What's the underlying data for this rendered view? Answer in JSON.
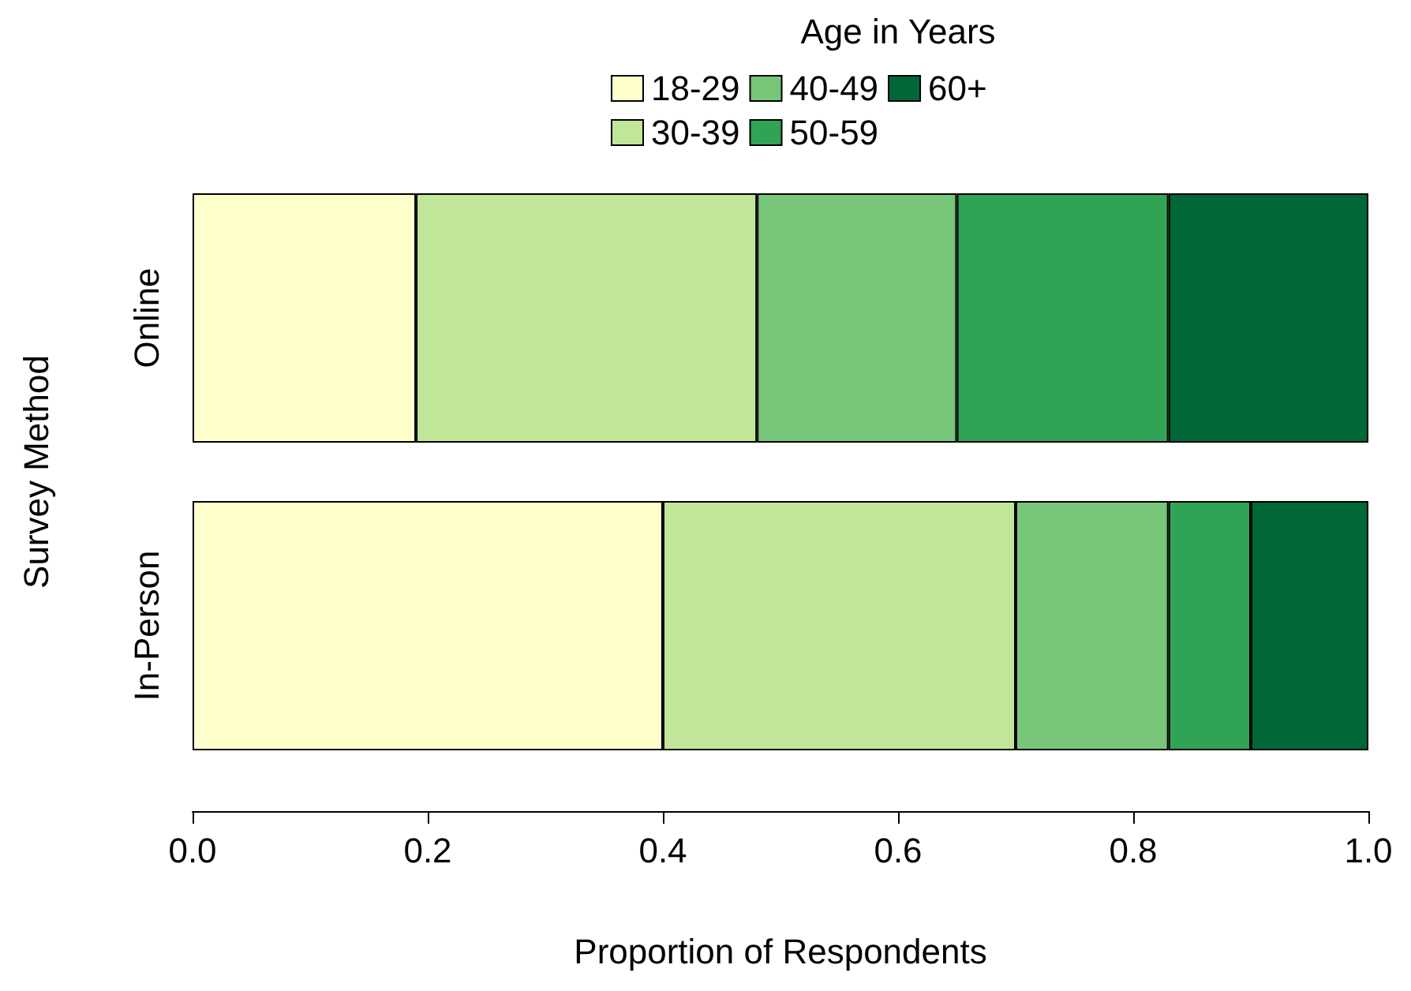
{
  "chart_data": {
    "type": "bar",
    "orientation": "horizontal",
    "stacked": true,
    "categories": [
      "Online",
      "In-Person"
    ],
    "series": [
      {
        "name": "18-29",
        "color": "#ffffcc",
        "values": [
          0.19,
          0.4
        ]
      },
      {
        "name": "30-39",
        "color": "#c2e699",
        "values": [
          0.29,
          0.3
        ]
      },
      {
        "name": "40-49",
        "color": "#78c679",
        "values": [
          0.17,
          0.13
        ]
      },
      {
        "name": "50-59",
        "color": "#31a354",
        "values": [
          0.18,
          0.07
        ]
      },
      {
        "name": "60+",
        "color": "#006837",
        "values": [
          0.17,
          0.1
        ]
      }
    ],
    "xlabel": "Proportion of Respondents",
    "ylabel": "Survey Method",
    "legend_title": "Age in Years",
    "xlim": [
      0,
      1
    ],
    "xticks": [
      {
        "value": 0,
        "label": "0.0"
      },
      {
        "value": 0.2,
        "label": "0.2"
      },
      {
        "value": 0.4,
        "label": "0.4"
      },
      {
        "value": 0.6,
        "label": "0.6"
      },
      {
        "value": 0.8,
        "label": "0.8"
      },
      {
        "value": 1,
        "label": "1.0"
      }
    ],
    "grid": false,
    "legend": "top"
  }
}
